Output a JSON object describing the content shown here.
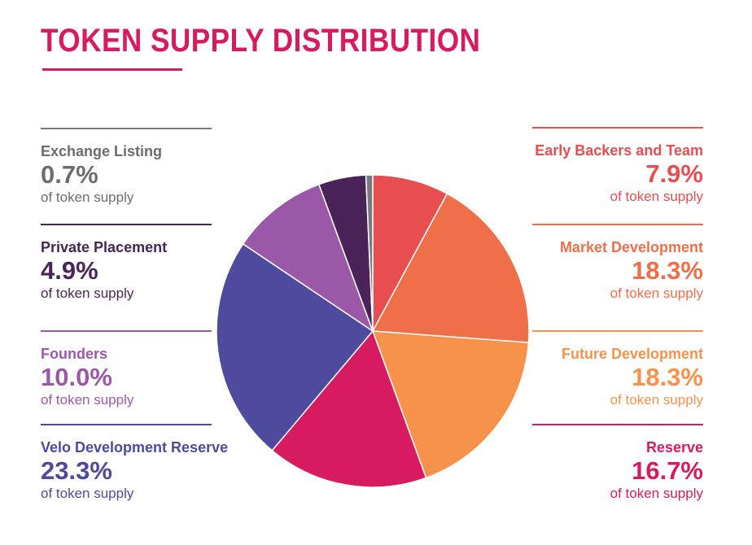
{
  "colors": {
    "title": "#d81b60",
    "early_backers": "#e84d4f",
    "market_dev": "#ef6f48",
    "future_dev": "#f7924a",
    "reserve": "#d81b60",
    "velo_reserve": "#4e4a9e",
    "founders": "#9c58a8",
    "private_placement": "#4a2458",
    "exchange_listing": "#7a7a7a",
    "callout_left_text": "#4a2458",
    "callout_exchange_text": "#6d6d6d"
  },
  "chart_data": {
    "type": "pie",
    "title": "TOKEN SUPPLY DISTRIBUTION",
    "start_angle_deg": 0,
    "direction": "clockwise",
    "slices": [
      {
        "label": "Early Backers and Team",
        "value": 7.9,
        "percent_text": "7.9%",
        "color": "#e84d4f"
      },
      {
        "label": "Market Development",
        "value": 18.3,
        "percent_text": "18.3%",
        "color": "#ef6f48"
      },
      {
        "label": "Future Development",
        "value": 18.3,
        "percent_text": "18.3%",
        "color": "#f7924a"
      },
      {
        "label": "Reserve",
        "value": 16.7,
        "percent_text": "16.7%",
        "color": "#d81b60"
      },
      {
        "label": "Velo Development Reserve",
        "value": 23.3,
        "percent_text": "23.3%",
        "color": "#4e4a9e"
      },
      {
        "label": "Founders",
        "value": 10.0,
        "percent_text": "10.0%",
        "color": "#9c58a8"
      },
      {
        "label": "Private Placement",
        "value": 4.9,
        "percent_text": "4.9%",
        "color": "#4a2458"
      },
      {
        "label": "Exchange Listing",
        "value": 0.7,
        "percent_text": "0.7%",
        "color": "#7a7a7a"
      }
    ],
    "sublabel": "of token supply"
  },
  "callouts": {
    "left": [
      {
        "label": "Exchange Listing",
        "pct": "0.7%",
        "sub": "of token supply",
        "color": "#6d6d6d",
        "rule": "#7a7a7a"
      },
      {
        "label": "Private Placement",
        "pct": "4.9%",
        "sub": "of token supply",
        "color": "#4a2458",
        "rule": "#4a2458"
      },
      {
        "label": "Founders",
        "pct": "10.0%",
        "sub": "of token supply",
        "color": "#9c58a8",
        "rule": "#9c58a8"
      },
      {
        "label": "Velo Development Reserve",
        "pct": "23.3%",
        "sub": "of token supply",
        "color": "#4e4a9e",
        "rule": "#4e4a9e"
      }
    ],
    "right": [
      {
        "label": "Early Backers and Team",
        "pct": "7.9%",
        "sub": "of token supply",
        "color": "#e84d4f",
        "rule": "#e84d4f"
      },
      {
        "label": "Market Development",
        "pct": "18.3%",
        "sub": "of token supply",
        "color": "#ef6f48",
        "rule": "#ef6f48"
      },
      {
        "label": "Future Development",
        "pct": "18.3%",
        "sub": "of token supply",
        "color": "#f7924a",
        "rule": "#f7924a"
      },
      {
        "label": "Reserve",
        "pct": "16.7%",
        "sub": "of token supply",
        "color": "#d81b60",
        "rule": "#d81b60"
      }
    ]
  }
}
